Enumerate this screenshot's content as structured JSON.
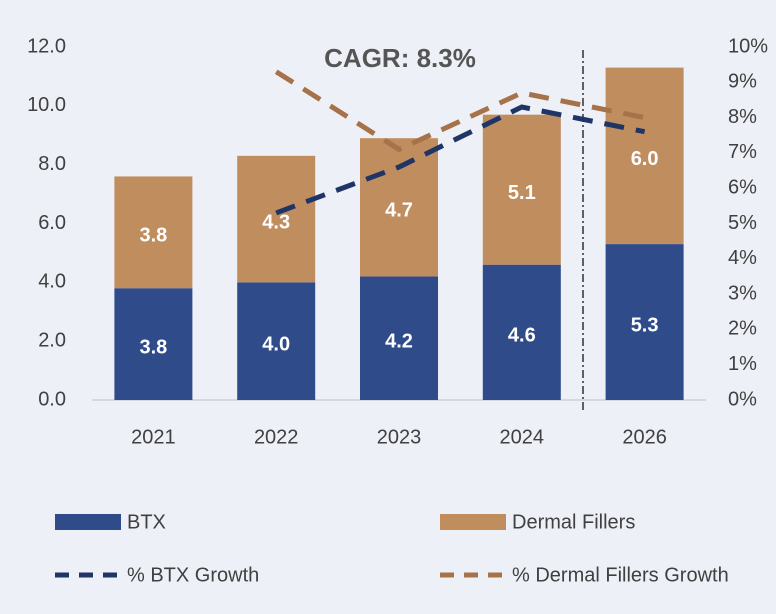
{
  "chart_data": {
    "type": "bar",
    "stacked": true,
    "annotations": [
      "CAGR: 8.3%"
    ],
    "categories": [
      "2021",
      "2022",
      "2023",
      "2024",
      "2026"
    ],
    "series": [
      {
        "name": "BTX",
        "type": "bar",
        "color": "#2f4b8a",
        "values": [
          3.8,
          4.0,
          4.2,
          4.6,
          5.3
        ],
        "value_labels": [
          "3.8",
          "4.0",
          "4.2",
          "4.6",
          "5.3"
        ]
      },
      {
        "name": "Dermal Fillers",
        "type": "bar",
        "color": "#c08d5f",
        "values": [
          3.8,
          4.3,
          4.7,
          5.1,
          6.0
        ],
        "value_labels": [
          "3.8",
          "4.3",
          "4.7",
          "5.1",
          "6.0"
        ]
      },
      {
        "name": "% BTX Growth",
        "type": "line",
        "axis": "y2",
        "color": "#1f3566",
        "values": [
          null,
          5.3,
          6.6,
          8.3,
          7.6
        ]
      },
      {
        "name": "% Dermal Fillers Growth",
        "type": "line",
        "axis": "y2",
        "color": "#a6724a",
        "values": [
          null,
          9.3,
          7.1,
          8.7,
          8.0
        ]
      }
    ],
    "ylim": [
      0,
      12
    ],
    "yticks": [
      {
        "value": 0,
        "label": "0.0"
      },
      {
        "value": 2,
        "label": "2.0"
      },
      {
        "value": 4,
        "label": "4.0"
      },
      {
        "value": 6,
        "label": "6.0"
      },
      {
        "value": 8,
        "label": "8.0"
      },
      {
        "value": 10,
        "label": "10.0"
      },
      {
        "value": 12,
        "label": "12.0"
      }
    ],
    "y2lim": [
      0,
      10
    ],
    "y2ticks": [
      {
        "value": 0,
        "label": "0%"
      },
      {
        "value": 1,
        "label": "1%"
      },
      {
        "value": 2,
        "label": "2%"
      },
      {
        "value": 3,
        "label": "3%"
      },
      {
        "value": 4,
        "label": "4%"
      },
      {
        "value": 5,
        "label": "5%"
      },
      {
        "value": 6,
        "label": "6%"
      },
      {
        "value": 7,
        "label": "7%"
      },
      {
        "value": 8,
        "label": "8%"
      },
      {
        "value": 9,
        "label": "9%"
      },
      {
        "value": 10,
        "label": "10%"
      }
    ],
    "grid": false,
    "legend": "bottom"
  }
}
